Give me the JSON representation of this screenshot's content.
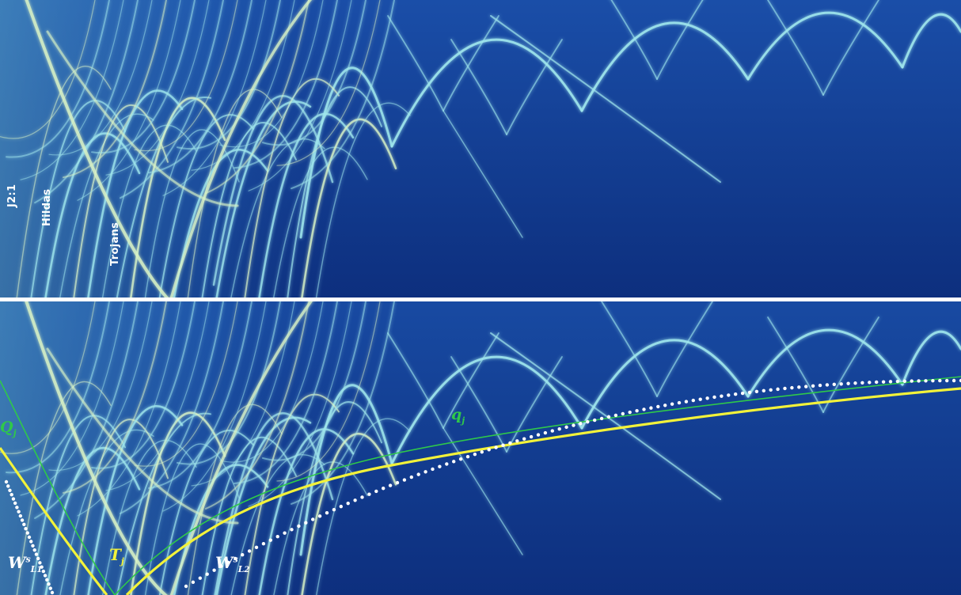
{
  "top_panel": {
    "labels": {
      "j21": "J2:1",
      "hildas": "Hildas",
      "trojans": "Trojans"
    }
  },
  "bottom_panel": {
    "labels": {
      "Q": "Q",
      "Q_sub": "j",
      "q": "q",
      "q_sub": "j",
      "T": "T",
      "T_sub": "j",
      "W1": "W",
      "W1_sup": "s",
      "W1_sub": "L",
      "W1_subsub": "1",
      "W2": "W",
      "W2_sup": "s",
      "W2_sub": "L",
      "W2_subsub": "2"
    }
  },
  "colors": {
    "background": "#0d2f7e",
    "arcs": "#8fe0e8",
    "dense_region": "#d8f0c0",
    "q_curve": "#2fc84a",
    "T_curve": "#f2f23a",
    "W_dots": "#ffffff"
  }
}
